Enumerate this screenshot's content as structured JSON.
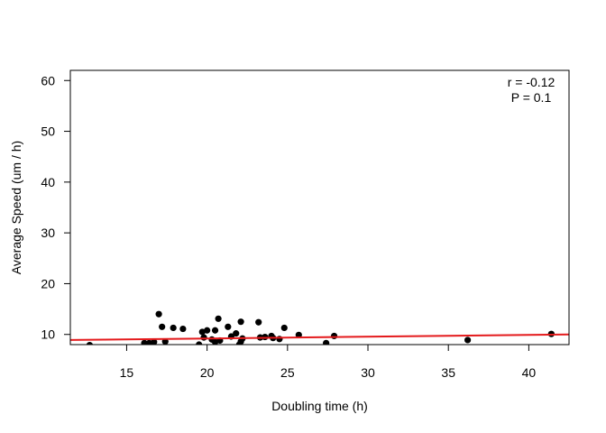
{
  "chart_data": {
    "type": "scatter",
    "title": "",
    "xlabel": "Doubling time (h)",
    "ylabel": "Average Speed (um / h)",
    "xlim": [
      11.5,
      42.5
    ],
    "ylim": [
      8,
      62
    ],
    "xticks": [
      15,
      20,
      25,
      30,
      35,
      40
    ],
    "yticks": [
      10,
      20,
      30,
      40,
      50,
      60
    ],
    "grid": false,
    "legend": "none",
    "annotations": [
      "r = -0.12",
      "P = 0.1"
    ],
    "point_color": "#000000",
    "line_color": "#e41a1c",
    "fit_line": {
      "x": [
        11.5,
        42.5
      ],
      "y": [
        8.9,
        10.0
      ]
    },
    "points": [
      {
        "x": 12.7,
        "y": 7.9
      },
      {
        "x": 16.1,
        "y": 8.3
      },
      {
        "x": 16.4,
        "y": 8.3
      },
      {
        "x": 16.7,
        "y": 8.5
      },
      {
        "x": 17.0,
        "y": 14.0
      },
      {
        "x": 17.2,
        "y": 11.5
      },
      {
        "x": 17.4,
        "y": 8.6
      },
      {
        "x": 17.9,
        "y": 11.3
      },
      {
        "x": 18.5,
        "y": 11.1
      },
      {
        "x": 19.5,
        "y": 8.0
      },
      {
        "x": 19.7,
        "y": 10.5
      },
      {
        "x": 19.8,
        "y": 9.4
      },
      {
        "x": 20.0,
        "y": 10.8
      },
      {
        "x": 20.3,
        "y": 9.0
      },
      {
        "x": 20.5,
        "y": 8.5
      },
      {
        "x": 20.5,
        "y": 10.8
      },
      {
        "x": 20.7,
        "y": 13.1
      },
      {
        "x": 20.8,
        "y": 8.8
      },
      {
        "x": 21.3,
        "y": 11.5
      },
      {
        "x": 21.5,
        "y": 9.6
      },
      {
        "x": 21.8,
        "y": 10.2
      },
      {
        "x": 22.0,
        "y": 8.0
      },
      {
        "x": 22.1,
        "y": 8.6
      },
      {
        "x": 22.1,
        "y": 12.5
      },
      {
        "x": 22.2,
        "y": 9.2
      },
      {
        "x": 23.2,
        "y": 12.4
      },
      {
        "x": 23.3,
        "y": 9.4
      },
      {
        "x": 23.6,
        "y": 9.5
      },
      {
        "x": 24.0,
        "y": 9.7
      },
      {
        "x": 24.1,
        "y": 9.3
      },
      {
        "x": 24.5,
        "y": 9.1
      },
      {
        "x": 24.8,
        "y": 11.3
      },
      {
        "x": 25.7,
        "y": 9.9
      },
      {
        "x": 27.4,
        "y": 8.3
      },
      {
        "x": 27.9,
        "y": 9.7
      },
      {
        "x": 36.2,
        "y": 8.9
      },
      {
        "x": 41.4,
        "y": 10.1
      }
    ]
  }
}
